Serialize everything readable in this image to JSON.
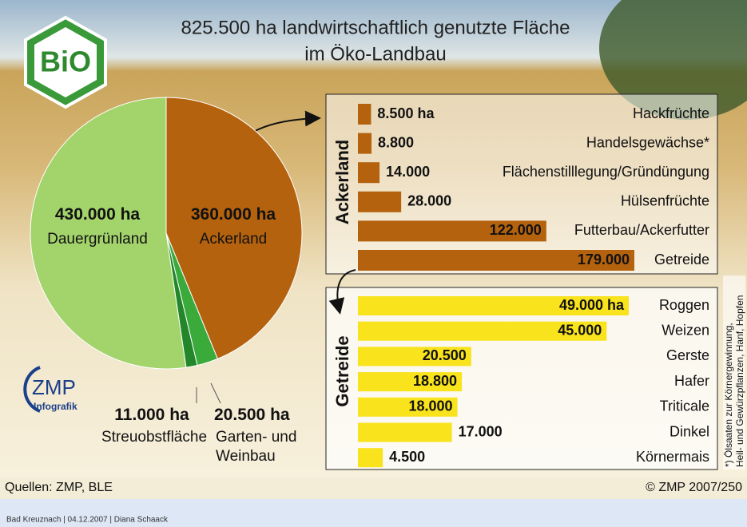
{
  "logo": "BiO",
  "agency_logo": {
    "name": "ZMP",
    "subtitle": "Infografik"
  },
  "chart_data": [
    {
      "type": "pie",
      "title": [
        "825.500 ha landwirtschaftlich genutzte Fläche",
        "im Öko-Landbau"
      ],
      "categories": [
        "Ackerland",
        "Garten- und Weinbau",
        "Streuobstfläche",
        "Dauergrünland"
      ],
      "values": [
        360000,
        20500,
        11000,
        430000
      ],
      "value_labels": [
        "360.000 ha",
        "20.500 ha",
        "11.000 ha",
        "430.000 ha"
      ],
      "colors": [
        "#b4620e",
        "#3aaa3a",
        "#23862a",
        "#a3d46c"
      ]
    },
    {
      "type": "bar",
      "orientation": "horizontal",
      "title": "Ackerland",
      "categories": [
        "Hackfrüchte",
        "Handelsgewächse*",
        "Flächenstilllegung/Gründüngung",
        "Hülsenfrüchte",
        "Futterbau/Ackerfutter",
        "Getreide"
      ],
      "values": [
        8500,
        8800,
        14000,
        28000,
        122000,
        179000
      ],
      "value_labels": [
        "8.500 ha",
        "8.800",
        "14.000",
        "28.000",
        "122.000",
        "179.000"
      ],
      "color": "#b4620e"
    },
    {
      "type": "bar",
      "orientation": "horizontal",
      "title": "Getreide",
      "categories": [
        "Roggen",
        "Weizen",
        "Gerste",
        "Hafer",
        "Triticale",
        "Dinkel",
        "Körnermais"
      ],
      "values": [
        49000,
        45000,
        20500,
        18800,
        18000,
        17000,
        4500
      ],
      "value_labels": [
        "49.000 ha",
        "45.000",
        "20.500",
        "18.800",
        "18.000",
        "17.000",
        "4.500"
      ],
      "color": "#f8e31c"
    }
  ],
  "footnote": [
    "*) Ölsaaten zur Körnergewinnung,",
    "Heil- und Gewürzpflanzen, Hanf, Hopfen"
  ],
  "sources": "Quellen: ZMP, BLE",
  "copyright": "© ZMP 2007/250",
  "footer": "Bad Kreuznach | 04.12.2007 | Diana Schaack"
}
